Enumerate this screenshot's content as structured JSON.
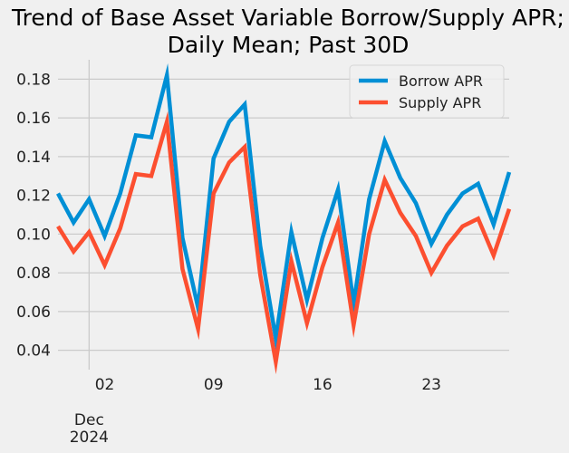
{
  "chart_data": {
    "type": "line",
    "title_line1": "Trend of Base Asset Variable Borrow/Supply APR;",
    "title_line2": "Daily Mean; Past 30D",
    "xlabel": "",
    "ylabel": "",
    "x": [
      "2024-11-29",
      "2024-11-30",
      "2024-12-01",
      "2024-12-02",
      "2024-12-03",
      "2024-12-04",
      "2024-12-05",
      "2024-12-06",
      "2024-12-07",
      "2024-12-08",
      "2024-12-09",
      "2024-12-10",
      "2024-12-11",
      "2024-12-12",
      "2024-12-13",
      "2024-12-14",
      "2024-12-15",
      "2024-12-16",
      "2024-12-17",
      "2024-12-18",
      "2024-12-19",
      "2024-12-20",
      "2024-12-21",
      "2024-12-22",
      "2024-12-23",
      "2024-12-24",
      "2024-12-25",
      "2024-12-26",
      "2024-12-27",
      "2024-12-28"
    ],
    "xlim": [
      "2024-11-29",
      "2024-12-28"
    ],
    "ylim": [
      0.03,
      0.19
    ],
    "x_ticks": [
      {
        "date": "2024-12-02",
        "label": "02"
      },
      {
        "date": "2024-12-09",
        "label": "09"
      },
      {
        "date": "2024-12-16",
        "label": "16"
      },
      {
        "date": "2024-12-23",
        "label": "23"
      }
    ],
    "x_month_label": {
      "date": "2024-12-01",
      "month": "Dec",
      "year": "2024"
    },
    "y_ticks": [
      0.04,
      0.06,
      0.08,
      0.1,
      0.12,
      0.14,
      0.16,
      0.18
    ],
    "y_tick_labels": [
      "0.04",
      "0.06",
      "0.08",
      "0.10",
      "0.12",
      "0.14",
      "0.16",
      "0.18"
    ],
    "grid": true,
    "legend_position": "top-right",
    "series": [
      {
        "name": "Borrow APR",
        "color": "#008fd5",
        "values": [
          0.121,
          0.106,
          0.118,
          0.099,
          0.121,
          0.151,
          0.15,
          0.182,
          0.098,
          0.062,
          0.139,
          0.158,
          0.167,
          0.094,
          0.046,
          0.101,
          0.066,
          0.098,
          0.123,
          0.064,
          0.118,
          0.148,
          0.129,
          0.116,
          0.095,
          0.11,
          0.121,
          0.126,
          0.105,
          0.132
        ]
      },
      {
        "name": "Supply APR",
        "color": "#fc4f30",
        "values": [
          0.104,
          0.091,
          0.101,
          0.084,
          0.103,
          0.131,
          0.13,
          0.158,
          0.082,
          0.051,
          0.121,
          0.137,
          0.145,
          0.079,
          0.034,
          0.086,
          0.054,
          0.083,
          0.106,
          0.053,
          0.1,
          0.128,
          0.111,
          0.099,
          0.08,
          0.094,
          0.104,
          0.108,
          0.089,
          0.113
        ]
      }
    ]
  }
}
